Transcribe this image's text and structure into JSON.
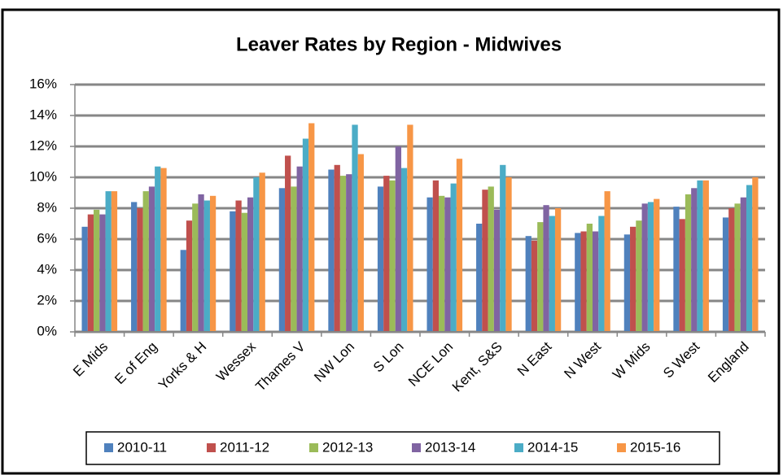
{
  "chart_data": {
    "type": "bar",
    "title": "Leaver Rates by Region - Midwives",
    "categories": [
      "E Mids",
      "E of Eng",
      "Yorks & H",
      "Wessex",
      "Thames V",
      "NW Lon",
      "S Lon",
      "NCE Lon",
      "Kent, S&S",
      "N East",
      "N West",
      "W Mids",
      "S West",
      "England"
    ],
    "series": [
      {
        "name": "2010-11",
        "color": "#4f81bd",
        "values": [
          6.8,
          8.4,
          5.3,
          7.8,
          9.3,
          10.5,
          9.4,
          8.7,
          7.0,
          6.2,
          6.4,
          6.3,
          8.1,
          7.4
        ]
      },
      {
        "name": "2011-12",
        "color": "#c0504d",
        "values": [
          7.6,
          8.0,
          7.2,
          8.5,
          11.4,
          10.8,
          10.1,
          9.8,
          9.2,
          5.9,
          6.5,
          6.8,
          7.3,
          8.0
        ]
      },
      {
        "name": "2012-13",
        "color": "#9bbb59",
        "values": [
          7.9,
          9.1,
          8.3,
          7.7,
          9.4,
          10.1,
          9.8,
          8.8,
          9.4,
          7.1,
          7.0,
          7.2,
          8.9,
          8.3
        ]
      },
      {
        "name": "2013-14",
        "color": "#8064a2",
        "values": [
          7.6,
          9.4,
          8.9,
          8.7,
          10.7,
          10.2,
          12.0,
          8.7,
          7.9,
          8.2,
          6.5,
          8.3,
          9.3,
          8.7
        ]
      },
      {
        "name": "2014-15",
        "color": "#4bacc6",
        "values": [
          9.1,
          10.7,
          8.5,
          10.0,
          12.5,
          13.4,
          10.6,
          9.6,
          10.8,
          7.5,
          7.5,
          8.4,
          9.8,
          9.5
        ]
      },
      {
        "name": "2015-16",
        "color": "#f79646",
        "values": [
          9.1,
          10.6,
          8.8,
          10.3,
          13.5,
          11.5,
          13.4,
          11.2,
          10.0,
          8.0,
          9.1,
          8.6,
          9.8,
          10.0
        ]
      }
    ],
    "ylim": [
      0,
      16
    ],
    "yticks": [
      {
        "value": 0,
        "label": "0%"
      },
      {
        "value": 2,
        "label": "2%"
      },
      {
        "value": 4,
        "label": "4%"
      },
      {
        "value": 6,
        "label": "6%"
      },
      {
        "value": 8,
        "label": "8%"
      },
      {
        "value": 10,
        "label": "10%"
      },
      {
        "value": 12,
        "label": "12%"
      },
      {
        "value": 14,
        "label": "14%"
      },
      {
        "value": 16,
        "label": "16%"
      }
    ],
    "grid": true,
    "legend": "bottom"
  }
}
